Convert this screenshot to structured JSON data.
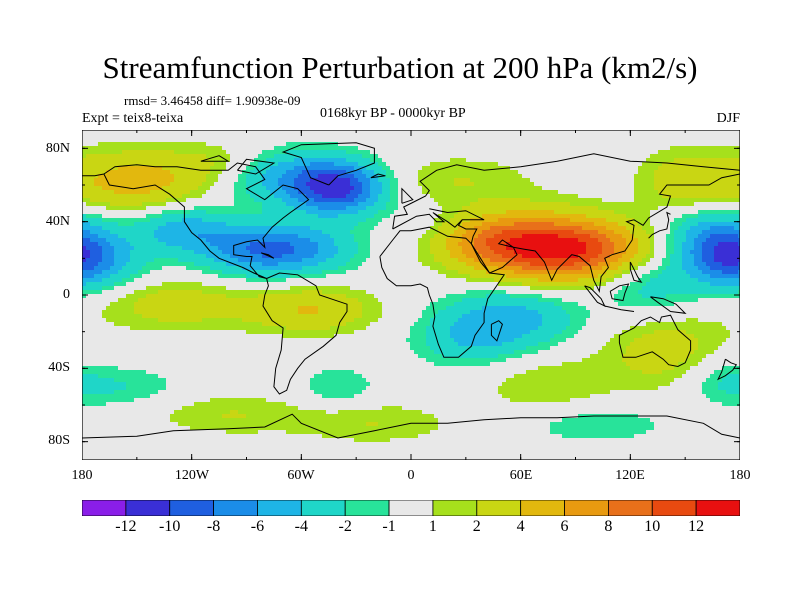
{
  "title": "Streamfunction Perturbation at 200 hPa (km2/s)",
  "stats": "rmsd= 3.46458 diff= 1.90938e-09",
  "experiment": "Expt = teix8-teixa",
  "period": "0168kyr BP - 0000kyr BP",
  "season": "DJF",
  "lat_ticks": [
    "80N",
    "40N",
    "0",
    "40S",
    "80S"
  ],
  "lon_ticks": [
    "180",
    "120W",
    "60W",
    "0",
    "60E",
    "120E",
    "180"
  ],
  "colorbar": {
    "labels": [
      "-12",
      "-10",
      "-8",
      "-6",
      "-4",
      "-2",
      "-1",
      "1",
      "2",
      "4",
      "6",
      "8",
      "10",
      "12"
    ],
    "colors": [
      "#8a1ee8",
      "#3a2fd6",
      "#1f5fe0",
      "#1b8de8",
      "#1eb5e6",
      "#1fd6c8",
      "#28e39a",
      "#e8e8e8",
      "#a6e01c",
      "#c9d613",
      "#e2b80e",
      "#e89a10",
      "#e8701a",
      "#e84a10",
      "#e81010"
    ]
  },
  "chart_data": {
    "type": "heatmap",
    "title": "Streamfunction Perturbation at 200 hPa (km2/s)",
    "xrange": [
      -180,
      180
    ],
    "yrange": [
      -90,
      90
    ],
    "units": "km2/s",
    "levels": [
      -12,
      -10,
      -8,
      -6,
      -4,
      -2,
      -1,
      1,
      2,
      4,
      6,
      8,
      10,
      12
    ],
    "features": [
      {
        "lon": 75,
        "lat": 25,
        "value": 11,
        "sx": 28,
        "sy": 13
      },
      {
        "lon": 40,
        "lat": 30,
        "value": 5,
        "sx": 25,
        "sy": 10
      },
      {
        "lon": 105,
        "lat": 25,
        "value": 4,
        "sx": 20,
        "sy": 10
      },
      {
        "lon": -150,
        "lat": 62,
        "value": 5,
        "sx": 30,
        "sy": 12
      },
      {
        "lon": -100,
        "lat": 72,
        "value": 2,
        "sx": 20,
        "sy": 8
      },
      {
        "lon": -40,
        "lat": 58,
        "value": -10,
        "sx": 18,
        "sy": 10
      },
      {
        "lon": -70,
        "lat": 65,
        "value": -5,
        "sx": 25,
        "sy": 10
      },
      {
        "lon": -85,
        "lat": 25,
        "value": -7,
        "sx": 22,
        "sy": 10
      },
      {
        "lon": -55,
        "lat": 25,
        "value": -4,
        "sx": 20,
        "sy": 9
      },
      {
        "lon": -125,
        "lat": 36,
        "value": -5,
        "sx": 18,
        "sy": 9
      },
      {
        "lon": -175,
        "lat": 20,
        "value": -6,
        "sx": 20,
        "sy": 12
      },
      {
        "lon": -55,
        "lat": -8,
        "value": 4,
        "sx": 25,
        "sy": 9
      },
      {
        "lon": -130,
        "lat": -5,
        "value": 3,
        "sx": 30,
        "sy": 10
      },
      {
        "lon": 25,
        "lat": 62,
        "value": 2,
        "sx": 30,
        "sy": 10
      },
      {
        "lon": 150,
        "lat": 62,
        "value": 3,
        "sx": 18,
        "sy": 12
      },
      {
        "lon": 165,
        "lat": 35,
        "value": -4,
        "sx": 18,
        "sy": 10
      },
      {
        "lon": 170,
        "lat": 20,
        "value": -5,
        "sx": 15,
        "sy": 10
      },
      {
        "lon": 130,
        "lat": 5,
        "value": -3,
        "sx": 20,
        "sy": 12
      },
      {
        "lon": 55,
        "lat": -12,
        "value": -5,
        "sx": 25,
        "sy": 12
      },
      {
        "lon": 30,
        "lat": -25,
        "value": -3,
        "sx": 20,
        "sy": 10
      },
      {
        "lon": 75,
        "lat": -50,
        "value": 2,
        "sx": 25,
        "sy": 12
      },
      {
        "lon": 140,
        "lat": -30,
        "value": 3,
        "sx": 25,
        "sy": 15
      },
      {
        "lon": 170,
        "lat": -45,
        "value": -2,
        "sx": 15,
        "sy": 10
      },
      {
        "lon": -160,
        "lat": -50,
        "value": -2,
        "sx": 25,
        "sy": 8
      },
      {
        "lon": -100,
        "lat": -65,
        "value": 2,
        "sx": 30,
        "sy": 8
      },
      {
        "lon": -20,
        "lat": -70,
        "value": 2,
        "sx": 30,
        "sy": 8
      },
      {
        "lon": 100,
        "lat": -70,
        "value": -2,
        "sx": 30,
        "sy": 8
      },
      {
        "lon": -40,
        "lat": -50,
        "value": -2,
        "sx": 15,
        "sy": 8
      },
      {
        "lon": 10,
        "lat": 35,
        "value": -1.5,
        "sx": 15,
        "sy": 10
      }
    ]
  }
}
